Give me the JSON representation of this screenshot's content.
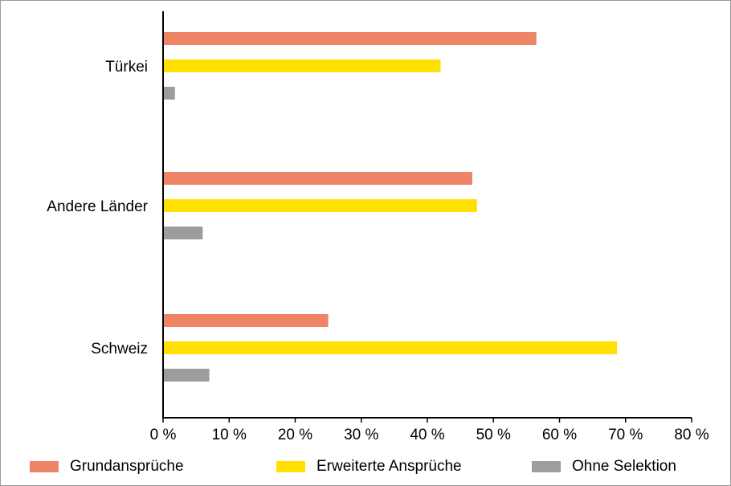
{
  "chart_data": {
    "type": "bar",
    "orientation": "horizontal",
    "categories": [
      "Türkei",
      "Andere Länder",
      "Schweiz"
    ],
    "series": [
      {
        "name": "Grundansprüche",
        "color": "#EE8466",
        "values": [
          56.5,
          46.8,
          25.0
        ]
      },
      {
        "name": "Erweiterte Ansprüche",
        "color": "#FFE000",
        "values": [
          42.0,
          47.5,
          68.7
        ]
      },
      {
        "name": "Ohne Selektion",
        "color": "#9D9D9D",
        "values": [
          1.8,
          6.0,
          7.0
        ]
      }
    ],
    "xlim": [
      0,
      80
    ],
    "xticks": [
      0,
      10,
      20,
      30,
      40,
      50,
      60,
      70,
      80
    ],
    "xtick_labels": [
      "0 %",
      "10 %",
      "20 %",
      "30 %",
      "40 %",
      "50 %",
      "60 %",
      "70 %",
      "80 %"
    ],
    "grid": false,
    "legend_position": "bottom"
  }
}
